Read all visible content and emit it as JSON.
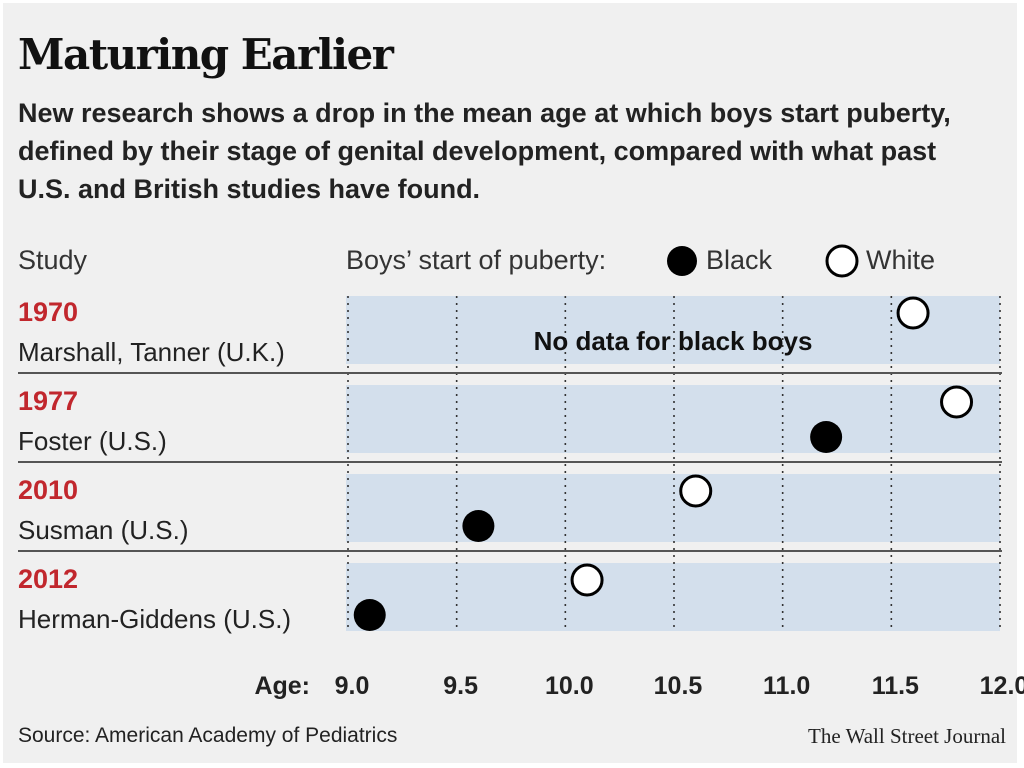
{
  "title": "Maturing Earlier",
  "subtitle": "New research shows a drop in the mean age at which boys start puberty, defined by their stage of genital development, compared with what past U.S. and British studies have found.",
  "header": {
    "study_label": "Study",
    "legend_label": "Boys’ start of puberty:"
  },
  "colors": {
    "band": "#d3dfec",
    "black_marker": "#000000",
    "white_marker": "#ffffff",
    "year": "#c1272d"
  },
  "chart_data": {
    "type": "scatter",
    "x_axis_label": "Age:",
    "xlim": [
      9.0,
      12.0
    ],
    "ticks": [
      "9.0",
      "9.5",
      "10.0",
      "10.5",
      "11.0",
      "11.5",
      "12.0"
    ],
    "tick_values": [
      9.0,
      9.5,
      10.0,
      10.5,
      11.0,
      11.5,
      12.0
    ],
    "grid": "vertical dotted",
    "legend_position": "top",
    "series": [
      {
        "name": "Black",
        "key": "black"
      },
      {
        "name": "White",
        "key": "white"
      }
    ],
    "studies": [
      {
        "year": "1970",
        "name": "Marshall, Tanner (U.K.)",
        "black": null,
        "white": 11.6,
        "note": "No data for black boys"
      },
      {
        "year": "1977",
        "name": "Foster (U.S.)",
        "black": 11.2,
        "white": 11.8,
        "note": ""
      },
      {
        "year": "2010",
        "name": "Susman (U.S.)",
        "black": 9.6,
        "white": 10.6,
        "note": ""
      },
      {
        "year": "2012",
        "name": "Herman-Giddens (U.S.)",
        "black": 9.1,
        "white": 10.1,
        "note": ""
      }
    ]
  },
  "footer": {
    "source": "Source: American Academy of Pediatrics",
    "credit": "The Wall Street Journal"
  }
}
